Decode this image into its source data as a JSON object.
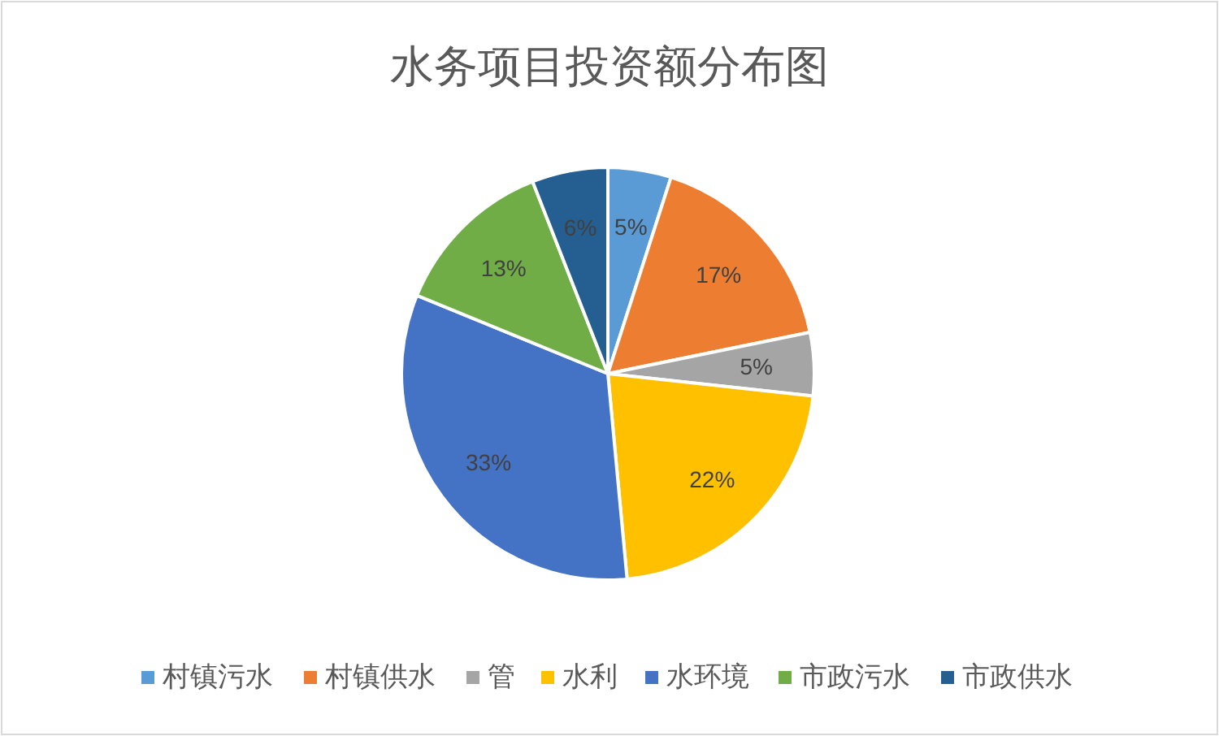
{
  "chart_data": {
    "type": "pie",
    "title": "水务项目投资额分布图",
    "categories": [
      "村镇污水",
      "村镇供水",
      "管",
      "水利",
      "水环境",
      "市政污水",
      "市政供水"
    ],
    "values": [
      5,
      17,
      5,
      22,
      33,
      13,
      6
    ],
    "colors": [
      "#5b9bd5",
      "#ed7d31",
      "#a5a5a5",
      "#ffc000",
      "#4472c4",
      "#70ad47",
      "#255e91"
    ],
    "value_labels": [
      "5%",
      "17%",
      "5%",
      "22%",
      "33%",
      "13%",
      "6%"
    ],
    "legend": "bottom"
  }
}
